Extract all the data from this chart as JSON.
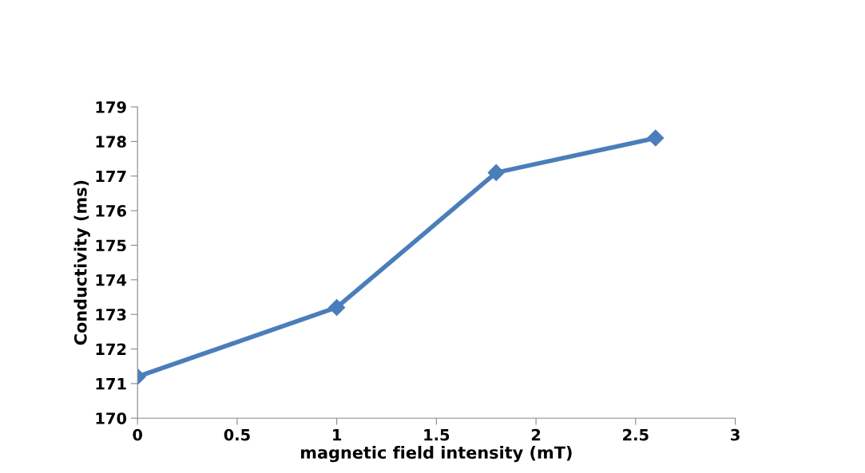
{
  "chart_data": {
    "type": "line",
    "xlabel": "magnetic field intensity (mT)",
    "ylabel": "Conductivity (ms)",
    "x": [
      0,
      1,
      1.8,
      2.6
    ],
    "series": [
      {
        "color": "#4a7ebb",
        "values": [
          171.2,
          173.2,
          177.1,
          178.1
        ]
      }
    ],
    "xlim": [
      0,
      3
    ],
    "xticks": [
      0,
      0.5,
      1,
      1.5,
      2,
      2.5,
      3
    ],
    "ylim": [
      170,
      179
    ],
    "yticks": [
      170,
      171,
      172,
      173,
      174,
      175,
      176,
      177,
      178,
      179
    ],
    "marker": "diamond",
    "line_style": "solid",
    "grid": false,
    "legend": false
  }
}
